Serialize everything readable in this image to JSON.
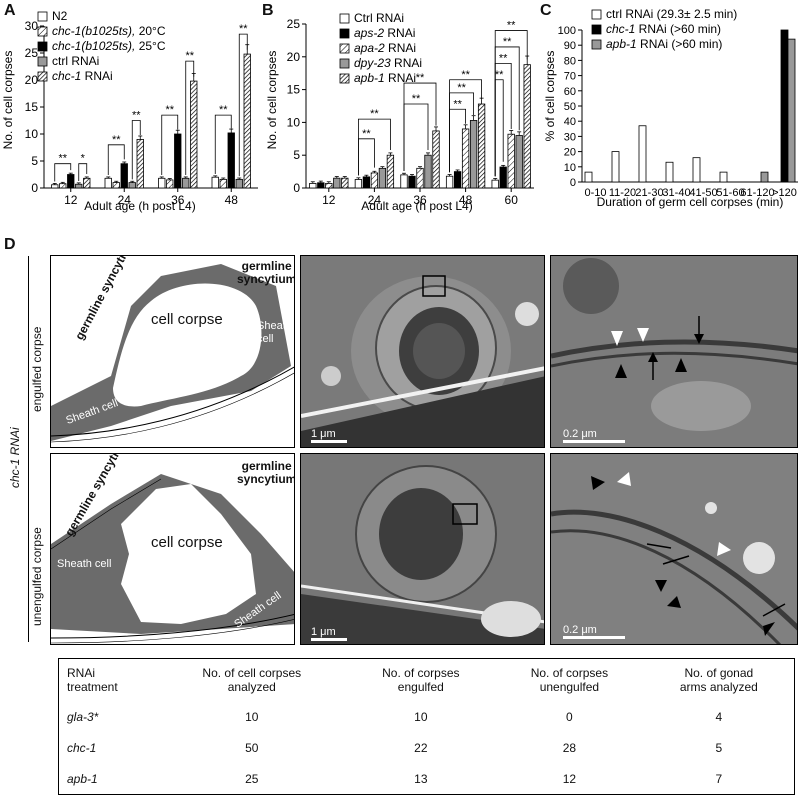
{
  "panels": {
    "A": "A",
    "B": "B",
    "C": "C",
    "D": "D"
  },
  "chart_a": {
    "type": "bar",
    "ylabel": "No. of cell corpses",
    "xlabel": "Adult age (h post L4)",
    "ylim": [
      0,
      30
    ],
    "yticks": [
      0,
      5,
      10,
      15,
      20,
      25,
      30
    ],
    "categories": [
      "12",
      "24",
      "36",
      "48"
    ],
    "legend": [
      "N2",
      "chc-1(b1025ts), 20°C",
      "chc-1(b1025ts), 25°C",
      "ctrl RNAi",
      "chc-1 RNAi"
    ],
    "series": [
      {
        "name": "N2",
        "values": [
          0.6,
          1.8,
          1.8,
          2.0
        ],
        "fill": "#ffffff",
        "pattern": "none"
      },
      {
        "name": "chc-1(b1025ts), 20°C",
        "values": [
          0.8,
          1.0,
          1.5,
          1.6
        ],
        "fill": "#ffffff",
        "pattern": "hatch"
      },
      {
        "name": "chc-1(b1025ts), 25°C",
        "values": [
          2.5,
          4.5,
          10.0,
          10.2
        ],
        "fill": "#000000",
        "pattern": "none"
      },
      {
        "name": "ctrl RNAi",
        "values": [
          0.7,
          1.0,
          1.8,
          1.6
        ],
        "fill": "#999999",
        "pattern": "none"
      },
      {
        "name": "chc-1 RNAi",
        "values": [
          1.8,
          9.0,
          19.8,
          24.8
        ],
        "fill": "#ffffff",
        "pattern": "hatch-dense"
      }
    ],
    "significance": [
      {
        "from_series": 0,
        "to_series": 2,
        "category": 0,
        "y": 4.5,
        "label": "**"
      },
      {
        "from_series": 3,
        "to_series": 4,
        "category": 0,
        "y": 4.5,
        "label": "*"
      },
      {
        "from_series": 0,
        "to_series": 2,
        "category": 1,
        "y": 8.0,
        "label": "**"
      },
      {
        "from_series": 3,
        "to_series": 4,
        "category": 1,
        "y": 12.5,
        "label": "**"
      },
      {
        "from_series": 0,
        "to_series": 2,
        "category": 2,
        "y": 13.5,
        "label": "**"
      },
      {
        "from_series": 3,
        "to_series": 4,
        "category": 2,
        "y": 23.5,
        "label": "**"
      },
      {
        "from_series": 0,
        "to_series": 2,
        "category": 3,
        "y": 13.5,
        "label": "**"
      },
      {
        "from_series": 3,
        "to_series": 4,
        "category": 3,
        "y": 28.5,
        "label": "**"
      }
    ]
  },
  "chart_b": {
    "type": "bar",
    "ylabel": "No. of cell corpses",
    "xlabel": "Adult age (h post L4)",
    "ylim": [
      0,
      25
    ],
    "yticks": [
      0,
      5,
      10,
      15,
      20,
      25
    ],
    "categories": [
      "12",
      "24",
      "36",
      "48",
      "60"
    ],
    "legend": [
      "Ctrl RNAi",
      "aps-2 RNAi",
      "apa-2 RNAi",
      "dpy-23 RNAi",
      "apb-1 RNAi"
    ],
    "series": [
      {
        "name": "Ctrl RNAi",
        "values": [
          0.7,
          1.3,
          2.0,
          1.8,
          1.2
        ],
        "fill": "#ffffff",
        "pattern": "none"
      },
      {
        "name": "aps-2 RNAi",
        "values": [
          0.8,
          1.7,
          1.8,
          2.5,
          3.2
        ],
        "fill": "#000000",
        "pattern": "none"
      },
      {
        "name": "apa-2 RNAi",
        "values": [
          0.7,
          2.3,
          3.0,
          9.0,
          8.2
        ],
        "fill": "#ffffff",
        "pattern": "hatch"
      },
      {
        "name": "dpy-23 RNAi",
        "values": [
          1.5,
          3.0,
          5.0,
          10.3,
          8.0
        ],
        "fill": "#999999",
        "pattern": "none"
      },
      {
        "name": "apb-1 RNAi",
        "values": [
          1.5,
          5.0,
          8.7,
          12.8,
          18.8
        ],
        "fill": "#ffffff",
        "pattern": "hatch-dense"
      }
    ],
    "significance": [
      {
        "from_series": 0,
        "to_series": 4,
        "category": 1,
        "y": 10.5,
        "label": "**"
      },
      {
        "from_series": 0,
        "to_series": 2,
        "category": 1,
        "y": 7.5,
        "label": "**"
      },
      {
        "from_series": 0,
        "to_series": 4,
        "category": 2,
        "y": 16.0,
        "label": "**"
      },
      {
        "from_series": 0,
        "to_series": 3,
        "category": 2,
        "y": 12.8,
        "label": "**"
      },
      {
        "from_series": 0,
        "to_series": 4,
        "category": 3,
        "y": 16.5,
        "label": "**"
      },
      {
        "from_series": 0,
        "to_series": 3,
        "category": 3,
        "y": 14.5,
        "label": "**"
      },
      {
        "from_series": 0,
        "to_series": 2,
        "category": 3,
        "y": 12.0,
        "label": "**"
      },
      {
        "from_series": 0,
        "to_series": 4,
        "category": 4,
        "y": 24.0,
        "label": "**"
      },
      {
        "from_series": 0,
        "to_series": 3,
        "category": 4,
        "y": 21.5,
        "label": "**"
      },
      {
        "from_series": 0,
        "to_series": 2,
        "category": 4,
        "y": 19.0,
        "label": "**"
      },
      {
        "from_series": 0,
        "to_series": 1,
        "category": 4,
        "y": 16.5,
        "label": "**"
      }
    ]
  },
  "chart_c": {
    "type": "bar",
    "ylabel": "% of cell corpses",
    "xlabel": "Duration of germ cell corpses (min)",
    "ylim": [
      0,
      100
    ],
    "yticks": [
      0,
      10,
      20,
      30,
      40,
      50,
      60,
      70,
      80,
      90,
      100
    ],
    "categories": [
      "0-10",
      "11-20",
      "21-30",
      "31-40",
      "41-50",
      "51-60",
      "61-120",
      ">120"
    ],
    "legend": [
      "ctrl RNAi (29.3± 2.5 min)",
      "chc-1 RNAi (>60 min)",
      "apb-1 RNAi (>60 min)"
    ],
    "series": [
      {
        "name": "ctrl RNAi (29.3± 2.5 min)",
        "values": [
          6.5,
          20,
          37,
          13,
          16,
          6.5,
          0,
          0
        ],
        "fill": "#ffffff"
      },
      {
        "name": "chc-1 RNAi (>60 min)",
        "values": [
          0,
          0,
          0,
          0,
          0,
          0,
          0,
          100
        ],
        "fill": "#000000"
      },
      {
        "name": "apb-1 RNAi (>60 min)",
        "values": [
          0,
          0,
          0,
          0,
          0,
          0,
          6.5,
          94
        ],
        "fill": "#999999"
      }
    ]
  },
  "panel_d": {
    "side_label": "chc-1 RNAi",
    "row1_label": "engulfed corpse",
    "row2_label": "unengulfed corpse",
    "schematic1": {
      "germline_top": "germline\nsyncytium",
      "germline_left": "germline\nsyncytium",
      "corpse": "cell\ncorpse",
      "sheath_right": "Sheath\ncell",
      "sheath_left": "Sheath\ncell"
    },
    "schematic2": {
      "germline_top": "germline\nsyncytium",
      "germline_left": "germline\nsyncytium",
      "corpse": "cell\ncorpse",
      "sheath_left": "Sheath\ncell",
      "sheath_right": "Sheath\ncell"
    },
    "scale_low": "1 μm",
    "scale_high": "0.2 μm"
  },
  "table": {
    "headers": [
      "RNAi\ntreatment",
      "No. of cell corpses\nanalyzed",
      "No. of corpses\nengulfed",
      "No. of corpses\nunengulfed",
      "No. of gonad\narms analyzed"
    ],
    "rows": [
      [
        "gla-3*",
        "10",
        "10",
        "0",
        "4"
      ],
      [
        "chc-1",
        "50",
        "22",
        "28",
        "5"
      ],
      [
        "apb-1",
        "25",
        "13",
        "12",
        "7"
      ]
    ]
  }
}
